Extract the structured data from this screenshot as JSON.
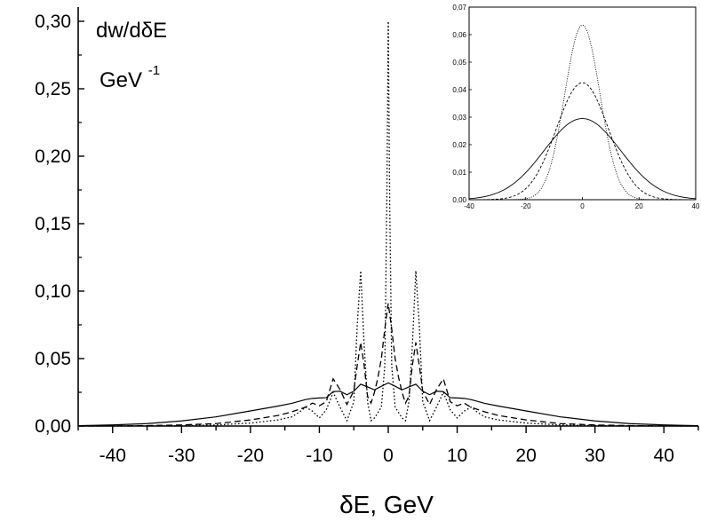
{
  "chart_data": [
    {
      "type": "line",
      "title": "",
      "ylabel": "dw/dδE",
      "ylabel_unit_base": "GeV",
      "ylabel_unit_exp": "-1",
      "xlabel": "δE, GeV",
      "xlim": [
        -45,
        45
      ],
      "ylim": [
        0,
        0.3
      ],
      "x_ticks": [
        -40,
        -30,
        -20,
        -10,
        0,
        10,
        20,
        30,
        40
      ],
      "x_tick_labels": [
        "-40",
        "-30",
        "-20",
        "-10",
        "0",
        "10",
        "20",
        "30",
        "40"
      ],
      "y_ticks": [
        0,
        0.05,
        0.1,
        0.15,
        0.2,
        0.25,
        0.3
      ],
      "y_tick_labels": [
        "0,00",
        "0,05",
        "0,10",
        "0,15",
        "0,20",
        "0,25",
        "0,30"
      ],
      "grid": false,
      "legend": "none",
      "series": [
        {
          "style": "solid",
          "x": [
            -45,
            -40,
            -35,
            -30,
            -25,
            -20,
            -16,
            -14,
            -12,
            -11,
            -10,
            -9,
            -8,
            -7,
            -6,
            -5,
            -4,
            -3,
            -2,
            -1,
            0,
            1,
            2,
            3,
            4,
            5,
            6,
            7,
            8,
            9,
            10,
            11,
            12,
            14,
            16,
            20,
            25,
            30,
            35,
            40,
            45
          ],
          "values": [
            0.0003,
            0.0008,
            0.0018,
            0.0038,
            0.0068,
            0.0112,
            0.0148,
            0.0168,
            0.0196,
            0.0205,
            0.0208,
            0.021,
            0.0255,
            0.0258,
            0.0232,
            0.0258,
            0.031,
            0.029,
            0.0268,
            0.0295,
            0.032,
            0.0295,
            0.0268,
            0.029,
            0.031,
            0.0258,
            0.0232,
            0.0258,
            0.0255,
            0.021,
            0.0208,
            0.0205,
            0.0196,
            0.0168,
            0.0148,
            0.0112,
            0.0068,
            0.0038,
            0.0018,
            0.0008,
            0.0003
          ]
        },
        {
          "style": "dashed",
          "x": [
            -45,
            -40,
            -35,
            -30,
            -25,
            -20,
            -16,
            -14,
            -12,
            -11,
            -10,
            -9,
            -8,
            -7,
            -6,
            -5,
            -4.5,
            -4,
            -3.5,
            -3,
            -2.5,
            -2,
            -1.5,
            -1,
            -0.5,
            0,
            0.5,
            1,
            1.5,
            2,
            2.5,
            3,
            3.5,
            4,
            4.5,
            5,
            6,
            7,
            8,
            9,
            10,
            11,
            12,
            14,
            16,
            20,
            25,
            30,
            35,
            40,
            45
          ],
          "values": [
            0.0,
            0.0001,
            0.0003,
            0.0008,
            0.0018,
            0.0045,
            0.0078,
            0.0105,
            0.014,
            0.017,
            0.015,
            0.018,
            0.035,
            0.027,
            0.016,
            0.026,
            0.045,
            0.062,
            0.045,
            0.022,
            0.017,
            0.025,
            0.036,
            0.05,
            0.072,
            0.091,
            0.072,
            0.05,
            0.036,
            0.025,
            0.017,
            0.022,
            0.045,
            0.062,
            0.045,
            0.026,
            0.016,
            0.027,
            0.035,
            0.018,
            0.015,
            0.017,
            0.014,
            0.0105,
            0.0078,
            0.0045,
            0.0018,
            0.0008,
            0.0003,
            0.0001,
            0.0
          ]
        },
        {
          "style": "dotted",
          "x": [
            -45,
            -40,
            -35,
            -30,
            -25,
            -20,
            -16,
            -14,
            -13,
            -12,
            -11,
            -10,
            -9,
            -8,
            -7,
            -6,
            -5,
            -4.5,
            -4,
            -3.5,
            -3,
            -2.5,
            -2,
            -1.5,
            -1,
            -0.5,
            -0.2,
            0,
            0.2,
            0.5,
            1,
            1.5,
            2,
            2.5,
            3,
            3.5,
            4,
            4.5,
            5,
            6,
            7,
            8,
            9,
            10,
            11,
            12,
            13,
            14,
            16,
            20,
            25,
            30,
            35,
            40,
            45
          ],
          "values": [
            0.0,
            0.0,
            0.0001,
            0.0003,
            0.0008,
            0.0022,
            0.0045,
            0.0068,
            0.01,
            0.014,
            0.011,
            0.006,
            0.012,
            0.025,
            0.014,
            0.004,
            0.018,
            0.075,
            0.115,
            0.06,
            0.018,
            0.004,
            0.006,
            0.01,
            0.014,
            0.045,
            0.17,
            0.3,
            0.17,
            0.045,
            0.014,
            0.01,
            0.006,
            0.004,
            0.018,
            0.06,
            0.115,
            0.075,
            0.018,
            0.004,
            0.014,
            0.025,
            0.012,
            0.006,
            0.011,
            0.014,
            0.01,
            0.0068,
            0.0045,
            0.0022,
            0.0008,
            0.0003,
            0.0001,
            0.0,
            0.0
          ]
        }
      ]
    },
    {
      "type": "line",
      "title": "",
      "xlabel": "",
      "ylabel": "",
      "xlim": [
        -40,
        40
      ],
      "ylim": [
        0,
        0.07
      ],
      "x_ticks": [
        -40,
        -20,
        0,
        20,
        40
      ],
      "x_tick_labels": [
        "-40",
        "-20",
        "0",
        "20",
        "40"
      ],
      "y_ticks": [
        0,
        0.01,
        0.02,
        0.03,
        0.04,
        0.05,
        0.06,
        0.07
      ],
      "y_tick_labels": [
        "0,00",
        "0,01",
        "0,02",
        "0,03",
        "0,04",
        "0,05",
        "0,06",
        "0,07"
      ],
      "grid": false,
      "legend": "none",
      "series": [
        {
          "style": "solid",
          "gauss_peak": 0.0295,
          "gauss_sigma": 13.5
        },
        {
          "style": "dashed",
          "gauss_peak": 0.0425,
          "gauss_sigma": 9.2
        },
        {
          "style": "dotted",
          "gauss_peak": 0.0635,
          "gauss_sigma": 6.2
        }
      ]
    }
  ]
}
